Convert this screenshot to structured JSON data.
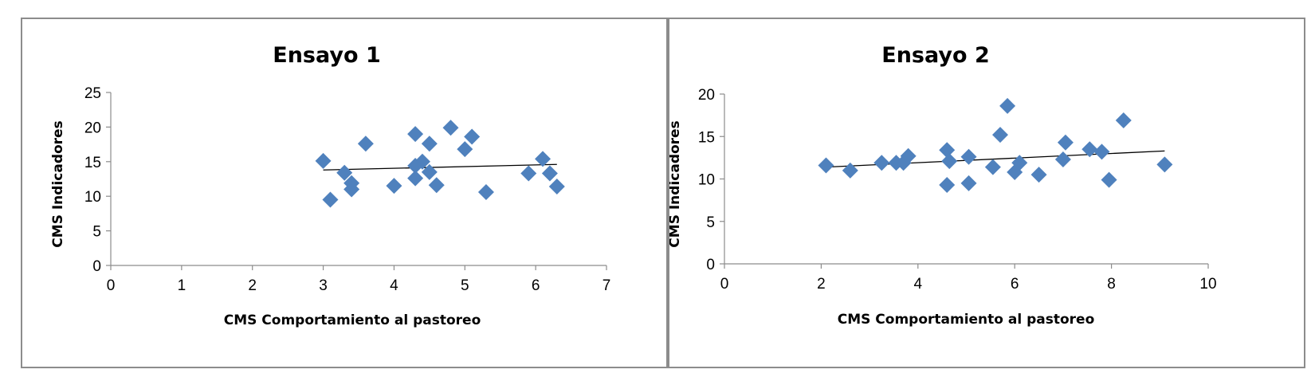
{
  "chart_data": [
    {
      "type": "scatter",
      "title": "Ensayo 1",
      "xlabel": "CMS Comportamiento al pastoreo",
      "ylabel": "CMS Indicadores",
      "xlim": [
        0,
        7
      ],
      "ylim": [
        0,
        25
      ],
      "xticks": [
        0,
        1,
        2,
        3,
        4,
        5,
        6,
        7
      ],
      "yticks": [
        0,
        5,
        10,
        15,
        20,
        25
      ],
      "marker_color": "#4f81bd",
      "grid": false,
      "legend": "none",
      "points": [
        {
          "x": 3.0,
          "y": 15.1
        },
        {
          "x": 3.1,
          "y": 9.5
        },
        {
          "x": 3.3,
          "y": 13.4
        },
        {
          "x": 3.4,
          "y": 11.9
        },
        {
          "x": 3.4,
          "y": 11.0
        },
        {
          "x": 3.6,
          "y": 17.6
        },
        {
          "x": 4.0,
          "y": 11.5
        },
        {
          "x": 4.3,
          "y": 19.0
        },
        {
          "x": 4.3,
          "y": 14.4
        },
        {
          "x": 4.3,
          "y": 12.6
        },
        {
          "x": 4.4,
          "y": 15.0
        },
        {
          "x": 4.5,
          "y": 17.6
        },
        {
          "x": 4.5,
          "y": 13.5
        },
        {
          "x": 4.6,
          "y": 11.6
        },
        {
          "x": 4.8,
          "y": 19.9
        },
        {
          "x": 5.0,
          "y": 16.8
        },
        {
          "x": 5.1,
          "y": 18.6
        },
        {
          "x": 5.3,
          "y": 10.6
        },
        {
          "x": 5.9,
          "y": 13.3
        },
        {
          "x": 6.1,
          "y": 15.4
        },
        {
          "x": 6.2,
          "y": 13.3
        },
        {
          "x": 6.3,
          "y": 11.4
        }
      ],
      "trendline": {
        "x": [
          3.0,
          6.3
        ],
        "y": [
          13.8,
          14.6
        ]
      }
    },
    {
      "type": "scatter",
      "title": "Ensayo 2",
      "xlabel": "CMS Comportamiento al pastoreo",
      "ylabel": "CMS Indicadores",
      "xlim": [
        0,
        10
      ],
      "ylim": [
        0,
        20
      ],
      "xticks": [
        0,
        2,
        4,
        6,
        8,
        10
      ],
      "yticks": [
        0,
        5,
        10,
        15,
        20
      ],
      "marker_color": "#4f81bd",
      "grid": false,
      "legend": "none",
      "points": [
        {
          "x": 2.1,
          "y": 11.6
        },
        {
          "x": 2.6,
          "y": 11.0
        },
        {
          "x": 3.25,
          "y": 11.9
        },
        {
          "x": 3.55,
          "y": 11.9
        },
        {
          "x": 3.7,
          "y": 11.9
        },
        {
          "x": 3.8,
          "y": 12.7
        },
        {
          "x": 4.6,
          "y": 13.4
        },
        {
          "x": 4.65,
          "y": 12.1
        },
        {
          "x": 4.6,
          "y": 9.3
        },
        {
          "x": 5.05,
          "y": 12.6
        },
        {
          "x": 5.05,
          "y": 9.5
        },
        {
          "x": 5.55,
          "y": 11.4
        },
        {
          "x": 5.7,
          "y": 15.2
        },
        {
          "x": 5.85,
          "y": 18.6
        },
        {
          "x": 6.0,
          "y": 10.8
        },
        {
          "x": 6.1,
          "y": 11.9
        },
        {
          "x": 6.5,
          "y": 10.5
        },
        {
          "x": 7.0,
          "y": 12.3
        },
        {
          "x": 7.05,
          "y": 14.3
        },
        {
          "x": 7.55,
          "y": 13.5
        },
        {
          "x": 7.8,
          "y": 13.2
        },
        {
          "x": 7.95,
          "y": 9.9
        },
        {
          "x": 8.25,
          "y": 16.9
        },
        {
          "x": 9.1,
          "y": 11.7
        }
      ],
      "trendline": {
        "x": [
          2.1,
          9.1
        ],
        "y": [
          11.4,
          13.3
        ]
      }
    }
  ]
}
